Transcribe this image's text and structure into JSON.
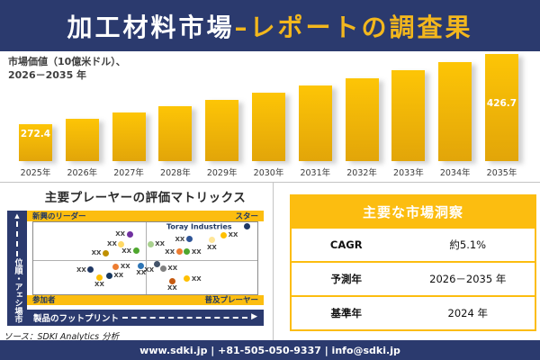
{
  "header": {
    "title_white": "加工材料市場",
    "title_gold": "–レポートの調査果"
  },
  "bar_section": {
    "subtitle_line1": "市場価値（10億米ドル）、",
    "subtitle_line2": "2026－2035 年"
  },
  "chart_data": [
    {
      "type": "bar",
      "title": "市場価値（10億米ドル）、2026－2035 年",
      "ylabel": "市場価値 (10億米ドル)",
      "categories": [
        "2025年",
        "2026年",
        "2027年",
        "2028年",
        "2029年",
        "2030年",
        "2031年",
        "2032年",
        "2033年",
        "2034年",
        "2035年"
      ],
      "values": [
        272.4,
        284.9,
        297.9,
        311.6,
        325.9,
        340.8,
        356.4,
        372.7,
        389.8,
        407.7,
        426.7
      ],
      "labeled_points": [
        {
          "category": "2025年",
          "value": 272.4
        },
        {
          "category": "2035年",
          "value": 426.7
        }
      ],
      "note": "only first and last bars carry data labels; intermediate values estimated from bar heights",
      "bar_color_top": "#fdc506",
      "bar_color_bottom": "#e2a509"
    },
    {
      "type": "scatter",
      "title": "主要プレーヤーの評価マトリックス",
      "xlabel": "製品のフットプリント",
      "ylabel": "市場シェア・順位",
      "quadrant_labels": {
        "top_left": "新興のリーダー",
        "top_right": "スター",
        "bottom_left": "参加者",
        "bottom_right": "普及プレーヤー"
      },
      "annotation": {
        "text": "Toray Industries",
        "x": 74,
        "y": 6
      },
      "points": [
        {
          "x": 43.0,
          "y": 16.5,
          "color": "#7030a0",
          "label": "XX",
          "label_pos": "left"
        },
        {
          "x": 39.3,
          "y": 30.4,
          "color": "#ffd966",
          "label": "XX",
          "label_pos": "left"
        },
        {
          "x": 45.8,
          "y": 39.6,
          "color": "#4ea72e",
          "label": "XX",
          "label_pos": "left"
        },
        {
          "x": 32.3,
          "y": 43.0,
          "color": "#bf9000",
          "label": "XX",
          "label_pos": "left"
        },
        {
          "x": 36.9,
          "y": 61.6,
          "color": "#ed7d31",
          "label": "XX",
          "label_pos": "right"
        },
        {
          "x": 48.1,
          "y": 60.8,
          "color": "#2e75b6",
          "label": "XX",
          "label_pos": "below"
        },
        {
          "x": 25.6,
          "y": 66.2,
          "color": "#203864",
          "label": "XX",
          "label_pos": "left"
        },
        {
          "x": 33.9,
          "y": 74.3,
          "color": "#17375e",
          "label": "XX",
          "label_pos": "right"
        },
        {
          "x": 29.5,
          "y": 76.8,
          "color": "#ffc000",
          "label": "XX",
          "label_pos": "below"
        },
        {
          "x": 95.2,
          "y": 5.9,
          "color": "#1f3864",
          "label": "",
          "label_pos": "none"
        },
        {
          "x": 85.0,
          "y": 17.7,
          "color": "#ffc000",
          "label": "XX",
          "label_pos": "right"
        },
        {
          "x": 79.7,
          "y": 24.9,
          "color": "#ffe699",
          "label": "XX",
          "label_pos": "below"
        },
        {
          "x": 69.6,
          "y": 23.7,
          "color": "#2f5597",
          "label": "XX",
          "label_pos": "left"
        },
        {
          "x": 52.3,
          "y": 30.4,
          "color": "#a9d18e",
          "label": "XX",
          "label_pos": "right"
        },
        {
          "x": 68.6,
          "y": 40.9,
          "color": "#4ea72e",
          "label": "XX",
          "label_pos": "right"
        },
        {
          "x": 65.1,
          "y": 40.9,
          "color": "#ed7d31",
          "label": "XX",
          "label_pos": "left"
        },
        {
          "x": 55.1,
          "y": 57.8,
          "color": "#44546a",
          "label": "XX",
          "label_pos": "below-left"
        },
        {
          "x": 58.0,
          "y": 64.2,
          "color": "#808080",
          "label": "XX",
          "label_pos": "right"
        },
        {
          "x": 62.0,
          "y": 81.9,
          "color": "#c55a11",
          "label": "XX",
          "label_pos": "below"
        },
        {
          "x": 68.6,
          "y": 78.5,
          "color": "#ffc000",
          "label": "XX",
          "label_pos": "right"
        }
      ]
    }
  ],
  "insights_table": {
    "title": "主要な市場洞察",
    "rows": [
      {
        "label": "CAGR",
        "value": "約5.1%"
      },
      {
        "label": "予測年",
        "value": "2026－2035 年"
      },
      {
        "label": "基準年",
        "value": "2024 年"
      }
    ]
  },
  "source": "ソース：SDKI Analytics 分析",
  "footer": {
    "text": "www.sdki.jp | +81-505-050-9337 | info@sdki.jp"
  },
  "colors": {
    "navy": "#2b3a6e",
    "gold": "#fcbd10",
    "title_gold": "#f3b71d",
    "bar_gold": "#fdc506"
  }
}
